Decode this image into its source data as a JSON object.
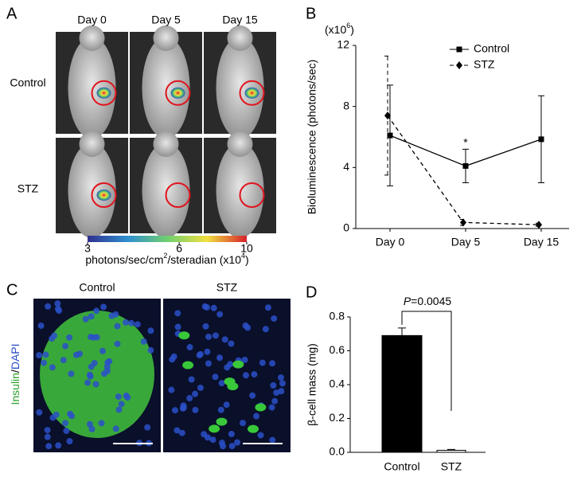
{
  "panels": {
    "a": {
      "label": "A",
      "columns": [
        "Day 0",
        "Day 5",
        "Day 15"
      ],
      "rows": [
        "Control",
        "STZ"
      ],
      "colorbar": {
        "range": [
          3,
          10
        ],
        "ticks": [
          3,
          6,
          10
        ],
        "log": true,
        "label": [
          "photons/sec/cm",
          "2",
          "/steradian (x10",
          "4",
          ")"
        ]
      }
    },
    "b": {
      "label": "B"
    },
    "c": {
      "label": "C",
      "columns": [
        "Control",
        "STZ"
      ],
      "stain": [
        "Insulin",
        "/",
        "DAPI"
      ]
    },
    "d": {
      "label": "D"
    }
  },
  "chart_data": [
    {
      "type": "line",
      "multiplier": [
        "(x10",
        "6",
        ")"
      ],
      "y_label": "Bioluminescence (photons/sec)",
      "categories": [
        "Day 0",
        "Day 5",
        "Day 15"
      ],
      "ylim": [
        0,
        12
      ],
      "yticks": [
        0,
        4,
        8,
        12
      ],
      "legend": "top-right",
      "annotation": "*",
      "series": [
        {
          "name": "Control",
          "color": "#000000",
          "marker": "square",
          "line_style": "solid",
          "values": [
            6.1,
            4.1,
            5.85
          ],
          "errors": [
            3.3,
            1.1,
            2.85
          ]
        },
        {
          "name": "STZ",
          "color": "#000000",
          "marker": "diamond",
          "line_style": "dashed",
          "values": [
            7.4,
            0.4,
            0.25
          ],
          "errors": [
            3.9,
            0.2,
            0.1
          ]
        }
      ]
    },
    {
      "type": "bar",
      "y_label": "β-cell mass (mg)",
      "categories": [
        "Control",
        "STZ"
      ],
      "values": [
        0.69,
        0.012
      ],
      "errors": [
        0.045,
        0.005
      ],
      "colors": [
        "#000000",
        "#ffffff"
      ],
      "ylim": [
        0,
        0.8
      ],
      "yticks": [
        {
          "value": 0,
          "label": "0.0"
        },
        0.2,
        0.4,
        0.6,
        0.8
      ],
      "annotation": [
        "P",
        "=0.0045"
      ]
    }
  ]
}
